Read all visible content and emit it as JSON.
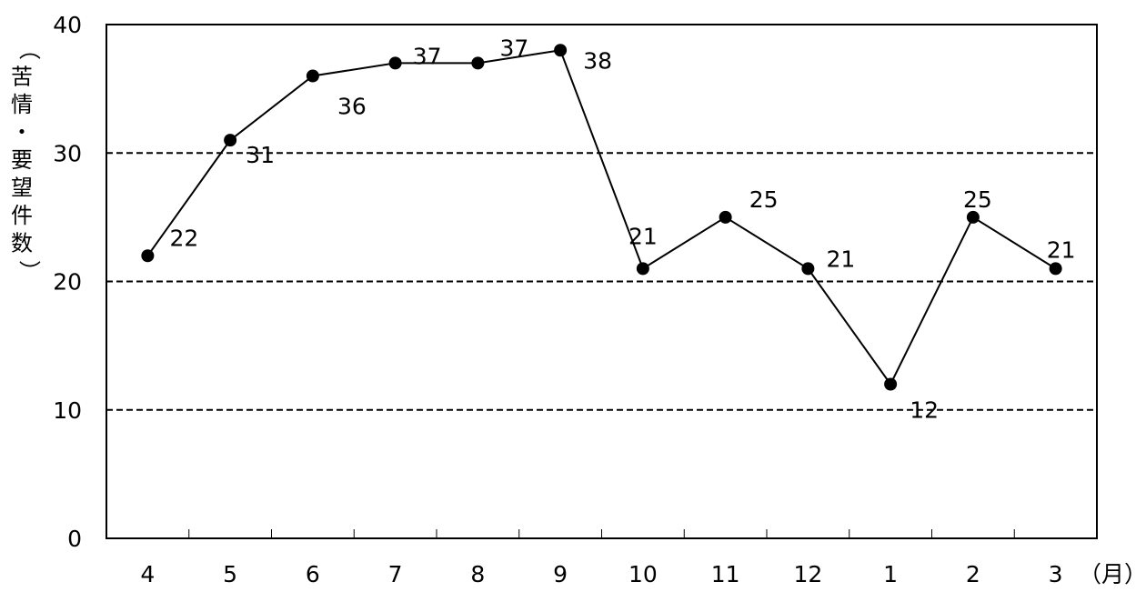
{
  "chart_data": {
    "type": "line",
    "title": "",
    "xlabel": "（月）",
    "ylabel": "（苦情・要望件数）",
    "categories": [
      "4",
      "5",
      "6",
      "7",
      "8",
      "9",
      "10",
      "11",
      "12",
      "1",
      "2",
      "3"
    ],
    "series": [
      {
        "values": [
          22,
          31,
          36,
          37,
          37,
          38,
          21,
          25,
          21,
          12,
          25,
          21
        ]
      }
    ],
    "data_labels": [
      "22",
      "31",
      "36",
      "37",
      "37",
      "38",
      "21",
      "25",
      "21",
      "12",
      "25",
      "21"
    ],
    "y_ticks": [
      "0",
      "10",
      "20",
      "30",
      "40"
    ],
    "ylim": [
      0,
      40
    ],
    "grid": "horizontal dashed",
    "legend": "none",
    "line_color": "#000000",
    "marker": "filled circle"
  }
}
